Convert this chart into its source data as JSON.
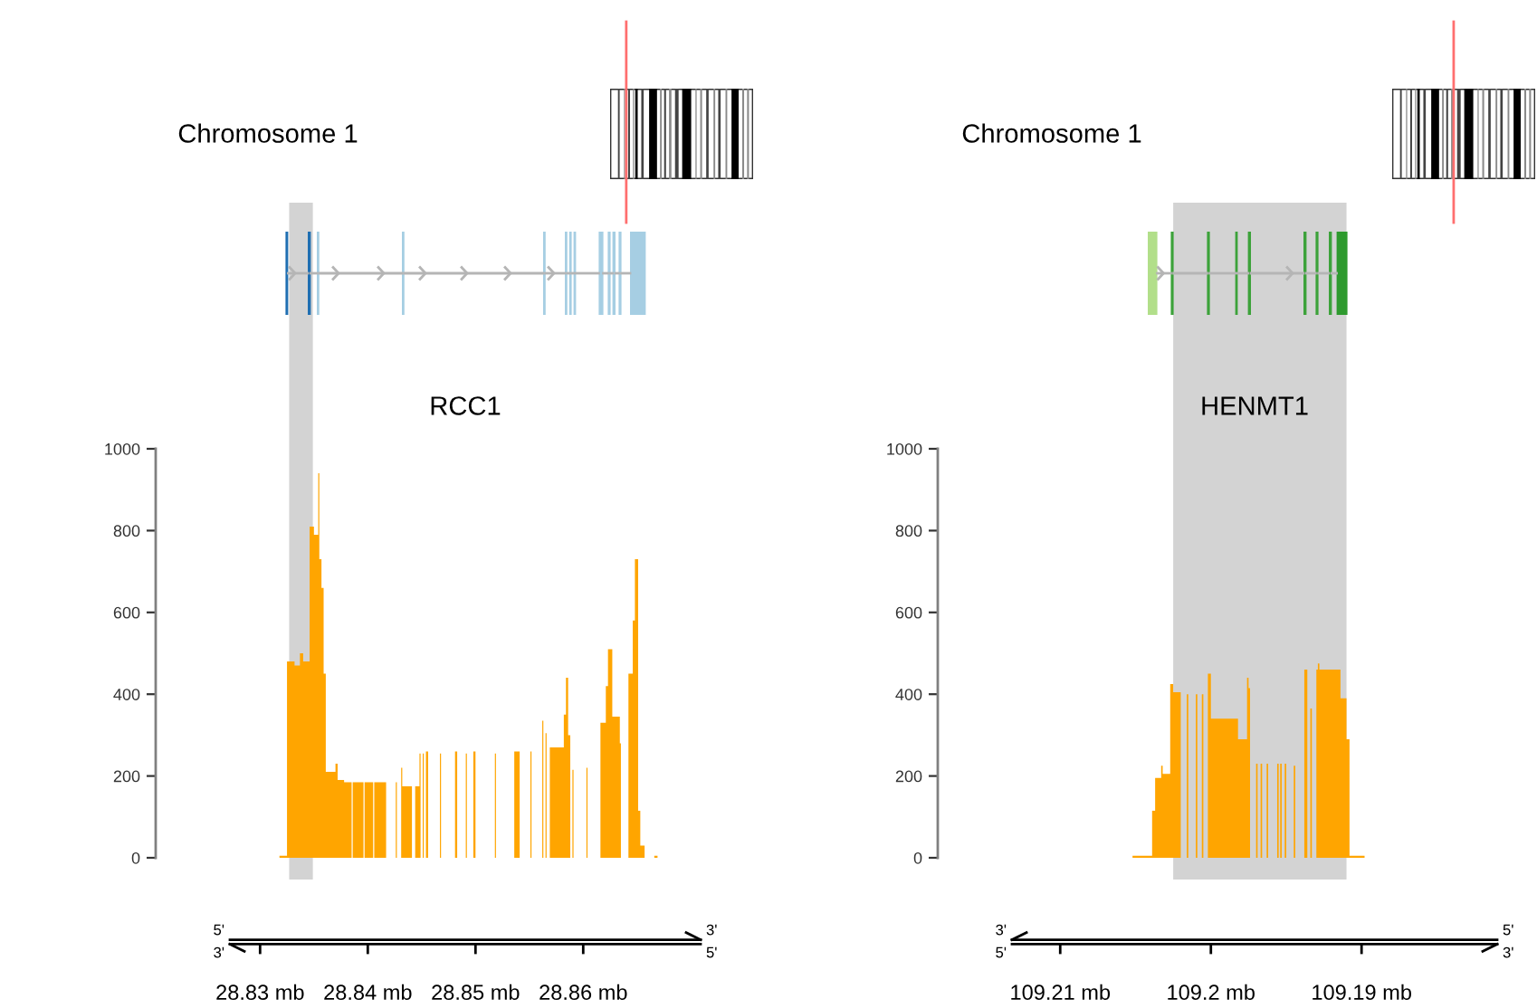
{
  "chart_data": [
    {
      "type": "histogram",
      "title": "RCC1",
      "annotations": [
        "Chromosome 1",
        "5'",
        "3'",
        "3'",
        "5'"
      ],
      "color": "#ffa500",
      "bins": [
        28.8318,
        28.8325,
        28.8332,
        28.8337,
        28.834,
        28.8346,
        28.835,
        28.8354,
        28.8355,
        28.8357,
        28.8359,
        28.8361,
        28.837,
        28.8372,
        28.8378,
        28.8385,
        28.8386,
        28.8396,
        28.8397,
        28.8405,
        28.8406,
        28.8417,
        28.8426,
        28.8427,
        28.8431,
        28.8432,
        28.8441,
        28.8444,
        28.8448,
        28.8449,
        28.8451,
        28.8452,
        28.8454,
        28.8456,
        28.8467,
        28.8468,
        28.8481,
        28.8483,
        28.8491,
        28.8492,
        28.8498,
        28.85,
        28.8518,
        28.8519,
        28.8536,
        28.8541,
        28.8551,
        28.8552,
        28.8562,
        28.8563,
        28.8565,
        28.8566,
        28.8569,
        28.8582,
        28.8584,
        28.8586,
        28.8588,
        28.859,
        28.8591,
        28.8603,
        28.8604,
        28.8616,
        28.8621,
        28.8623,
        28.8627,
        28.8634,
        28.8635,
        28.8642,
        28.8646,
        28.8648,
        28.8651,
        28.8653,
        28.8657,
        28.8666,
        28.8669
      ],
      "values": [
        5,
        480,
        470,
        500,
        480,
        810,
        790,
        940,
        730,
        660,
        450,
        210,
        230,
        190,
        185,
        0,
        185,
        0,
        185,
        0,
        185,
        0,
        185,
        0,
        220,
        175,
        0,
        175,
        255,
        0,
        255,
        0,
        260,
        0,
        255,
        0,
        260,
        0,
        255,
        0,
        260,
        0,
        255,
        0,
        260,
        0,
        260,
        0,
        335,
        0,
        305,
        0,
        270,
        350,
        440,
        300,
        0,
        215,
        0,
        220,
        0,
        330,
        420,
        510,
        345,
        280,
        0,
        450,
        580,
        730,
        115,
        30,
        0,
        5
      ],
      "xlim": [
        28.8272,
        28.8709
      ],
      "xticks": [
        {
          "value": 28.83,
          "label": "28.83 mb"
        },
        {
          "value": 28.84,
          "label": "28.84 mb"
        },
        {
          "value": 28.85,
          "label": "28.85 mb"
        },
        {
          "value": 28.86,
          "label": "28.86 mb"
        }
      ],
      "ylim": [
        0,
        1000
      ],
      "yticks": [
        0,
        200,
        400,
        600,
        800,
        1000
      ],
      "bands": [
        {
          "axis": "x",
          "from": 28.8327,
          "to": 28.8349,
          "color": "#d3d3d3"
        }
      ]
    },
    {
      "type": "histogram",
      "title": "HENMT1",
      "annotations": [
        "Chromosome 1",
        "3'",
        "5'",
        "5'",
        "3'"
      ],
      "color": "#ffa500",
      "bins": [
        109.1898,
        109.1908,
        109.191,
        109.1914,
        109.1928,
        109.1929,
        109.193,
        109.1933,
        109.1934,
        109.1936,
        109.1938,
        109.1944,
        109.1945,
        109.195,
        109.1951,
        109.1953,
        109.1954,
        109.1955,
        109.1956,
        109.1962,
        109.1963,
        109.1966,
        109.1967,
        109.1969,
        109.197,
        109.1974,
        109.1975,
        109.1976,
        109.1982,
        109.2,
        109.2002,
        109.2005,
        109.2006,
        109.2009,
        109.201,
        109.2015,
        109.2016,
        109.202,
        109.2025,
        109.2027,
        109.2032,
        109.2033,
        109.2037,
        109.2039,
        109.2052
      ],
      "values": [
        5,
        290,
        390,
        460,
        475,
        460,
        0,
        365,
        0,
        460,
        0,
        225,
        0,
        230,
        0,
        230,
        0,
        230,
        0,
        230,
        0,
        230,
        0,
        230,
        0,
        415,
        440,
        290,
        340,
        450,
        0,
        400,
        0,
        400,
        0,
        400,
        0,
        405,
        425,
        205,
        225,
        195,
        115,
        5
      ],
      "xlim": [
        109.2132,
        109.181
      ],
      "xticks": [
        {
          "value": 109.21,
          "label": "109.21 mb"
        },
        {
          "value": 109.2,
          "label": "109.2 mb"
        },
        {
          "value": 109.19,
          "label": "109.19 mb"
        }
      ],
      "ylim": [
        0,
        1000
      ],
      "yticks": [
        0,
        200,
        400,
        600,
        800,
        1000
      ],
      "bands": [
        {
          "axis": "x",
          "from": 109.191,
          "to": 109.2025,
          "color": "#d3d3d3"
        }
      ]
    }
  ]
}
